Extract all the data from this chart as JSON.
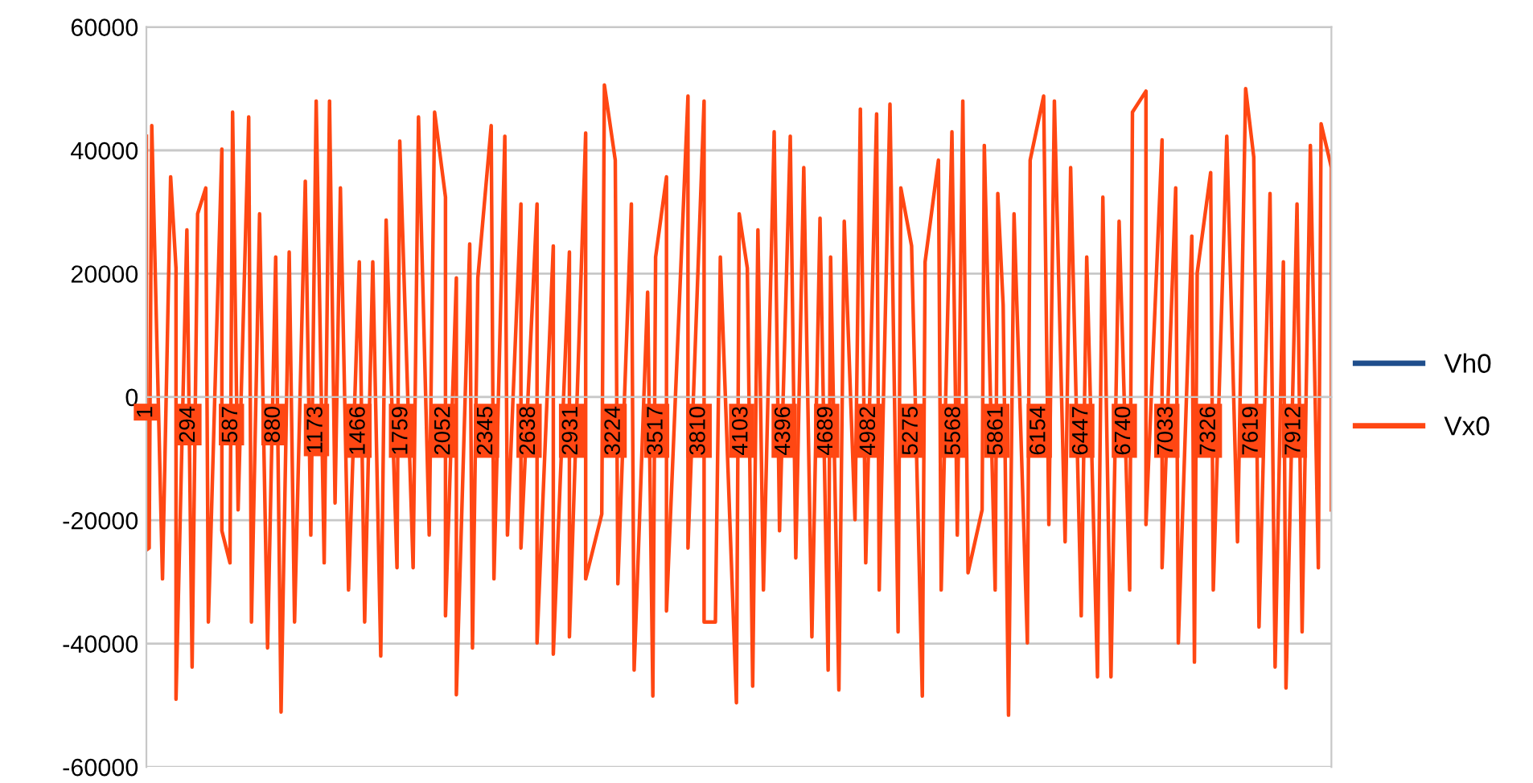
{
  "chart_data": {
    "type": "line",
    "xlim": [
      1,
      8167
    ],
    "xticks": [
      1,
      294,
      587,
      880,
      1173,
      1466,
      1759,
      2052,
      2345,
      2638,
      2931,
      3224,
      3517,
      3810,
      4103,
      4396,
      4689,
      4982,
      5275,
      5568,
      5861,
      6154,
      6447,
      6740,
      7033,
      7326,
      7619,
      7912
    ],
    "ylim": [
      -60000,
      60000
    ],
    "yticks": [
      -60000,
      -40000,
      -20000,
      0,
      20000,
      40000,
      60000
    ],
    "grid": "y",
    "legend": "right",
    "line_style": "solid",
    "series": [
      {
        "name": "Vh0",
        "color": "#1f4e8c"
      },
      {
        "name": "Vx0",
        "color": "#ff4713",
        "x": [
          1,
          1,
          20,
          38,
          112,
          168,
          205,
          205,
          280,
          316,
          354,
          410,
          428,
          521,
          521,
          577,
          595,
          633,
          706,
          725,
          781,
          836,
          892,
          929,
          985,
          1022,
          1096,
          1134,
          1171,
          1226,
          1263,
          1301,
          1338,
          1394,
          1468,
          1505,
          1561,
          1616,
          1653,
          1728,
          1747,
          1839,
          1876,
          1950,
          1987,
          2062,
          2062,
          2137,
          2137,
          2229,
          2248,
          2285,
          2377,
          2396,
          2471,
          2489,
          2582,
          2582,
          2693,
          2693,
          2805,
          2805,
          2916,
          2916,
          3028,
          3028,
          3139,
          3157,
          3232,
          3250,
          3343,
          3362,
          3455,
          3491,
          3510,
          3585,
          3585,
          3733,
          3733,
          3844,
          3844,
          3922,
          3956,
          4067,
          4086,
          4142,
          4179,
          4215,
          4253,
          4327,
          4364,
          4438,
          4476,
          4531,
          4587,
          4643,
          4699,
          4716,
          4773,
          4810,
          4884,
          4921,
          4958,
          5033,
          5051,
          5125,
          5181,
          5200,
          5274,
          5348,
          5367,
          5459,
          5478,
          5552,
          5589,
          5627,
          5663,
          5760,
          5775,
          5850,
          5868,
          5905,
          5942,
          5980,
          6072,
          6091,
          6184,
          6220,
          6258,
          6332,
          6370,
          6443,
          6481,
          6555,
          6592,
          6648,
          6704,
          6777,
          6796,
          6889,
          6889,
          7000,
          7000,
          7094,
          7112,
          7205,
          7223,
          7242,
          7335,
          7353,
          7446,
          7520,
          7576,
          7632,
          7668,
          7744,
          7779,
          7836,
          7854,
          7930,
          7965,
          8022,
          8077,
          8096,
          8167,
          8167
        ],
        "values": [
          42300,
          -24800,
          -24500,
          44000,
          -29500,
          35700,
          20900,
          -49000,
          27100,
          -43800,
          29700,
          33900,
          -36500,
          40200,
          -21700,
          -26900,
          46200,
          -18300,
          45400,
          -36500,
          29700,
          -40700,
          22700,
          -51100,
          23500,
          -36500,
          35000,
          -22400,
          48000,
          -26900,
          48000,
          -17200,
          33900,
          -31300,
          21900,
          -36500,
          21900,
          -42000,
          28700,
          -27700,
          41500,
          -27700,
          45400,
          -22400,
          46200,
          32400,
          -35500,
          19300,
          -48300,
          24800,
          -40700,
          19300,
          44000,
          -29500,
          42300,
          -22400,
          31300,
          -24500,
          31300,
          -39900,
          24500,
          -41700,
          23500,
          -38900,
          42800,
          -29500,
          -19000,
          50600,
          38400,
          -30300,
          31300,
          -44300,
          17000,
          -48500,
          22700,
          35700,
          -34700,
          48800,
          -24500,
          48000,
          -36500,
          -36500,
          22700,
          -49600,
          29700,
          20900,
          -46900,
          27100,
          -31300,
          43000,
          -21700,
          42300,
          -26100,
          37200,
          -38900,
          29000,
          -44300,
          22700,
          -47500,
          28500,
          -19900,
          46700,
          -26900,
          45900,
          -31300,
          47500,
          -38100,
          33900,
          24500,
          -48500,
          21900,
          38400,
          -31300,
          43000,
          -22400,
          48000,
          -28500,
          -18300,
          40800,
          -31300,
          33000,
          14900,
          -51600,
          29700,
          -39900,
          38400,
          48800,
          -20700,
          48000,
          -23500,
          37200,
          -35500,
          22700,
          -45400,
          32400,
          -45400,
          28500,
          -31300,
          46200,
          49600,
          -20700,
          41700,
          -27700,
          33900,
          -39900,
          26100,
          -43000,
          20100,
          36400,
          -31300,
          42300,
          -23500,
          50000,
          38900,
          -37300,
          33000,
          -43800,
          21900,
          -47200,
          31300,
          -38100,
          40800,
          -27700,
          44300,
          37200,
          -18300
        ]
      }
    ]
  }
}
